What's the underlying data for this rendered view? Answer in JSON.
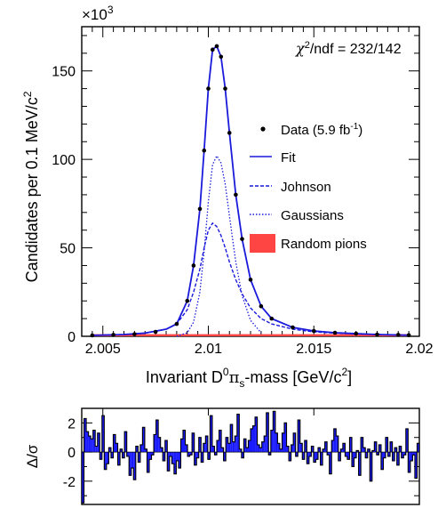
{
  "chart_data": [
    {
      "type": "line",
      "multiplier_label": "×10",
      "multiplier_exp": "3",
      "chi2_label": "χ",
      "chi2_rest": "/ndf = 232/142",
      "ylabel": "Candidates per 0.1 MeV/c",
      "ylabel_sup": "2",
      "xlabel_parts": [
        "Invariant D",
        "0",
        "π",
        "s",
        "-mass [GeV/c",
        "2",
        "]"
      ],
      "xlim": [
        2.004,
        2.02
      ],
      "ylim": [
        0,
        175
      ],
      "x_ticks": [
        2.005,
        2.01,
        2.015,
        2.02
      ],
      "x_tick_labels": [
        "2.005",
        "2.01",
        "2.015",
        "2.02"
      ],
      "y_ticks": [
        0,
        50,
        100,
        150
      ],
      "y_tick_labels": [
        "0",
        "50",
        "100",
        "150"
      ],
      "legend_position": "right",
      "legend": [
        {
          "label": "Data (5.9 fb",
          "sup": "-1",
          "tail": ")",
          "style": "marker"
        },
        {
          "label": "Fit",
          "style": "solid",
          "color": "#1a1adb"
        },
        {
          "label": "Johnson",
          "style": "dashed",
          "color": "#1a1adb"
        },
        {
          "label": "Gaussians",
          "style": "dotted",
          "color": "#1a1adb"
        },
        {
          "label": "Random pions",
          "style": "box",
          "color": "#ff4444"
        }
      ],
      "series": [
        {
          "name": "Data (5.9 fb-1)",
          "x": [
            2.0045,
            2.0055,
            2.0065,
            2.0075,
            2.0085,
            2.009,
            2.0093,
            2.0096,
            2.0098,
            2.01,
            2.0102,
            2.0104,
            2.0106,
            2.0108,
            2.011,
            2.0113,
            2.0116,
            2.012,
            2.0125,
            2.013,
            2.014,
            2.015,
            2.016,
            2.017,
            2.018,
            2.019,
            2.0195
          ],
          "values": [
            0.5,
            0.8,
            1.2,
            2.5,
            7,
            20,
            40,
            72,
            105,
            140,
            162,
            164,
            158,
            140,
            115,
            80,
            55,
            32,
            17,
            10,
            5,
            3,
            2,
            1.5,
            1,
            0.8,
            0.6
          ]
        },
        {
          "name": "Fit",
          "x": [
            2.0045,
            2.006,
            2.007,
            2.008,
            2.0085,
            2.009,
            2.0093,
            2.0096,
            2.0098,
            2.01,
            2.0102,
            2.0104,
            2.0106,
            2.0108,
            2.011,
            2.0113,
            2.0116,
            2.012,
            2.0125,
            2.013,
            2.014,
            2.015,
            2.016,
            2.018,
            2.0195
          ],
          "values": [
            0.5,
            1,
            1.8,
            4,
            7,
            20,
            40,
            72,
            105,
            140,
            162,
            164,
            158,
            140,
            115,
            80,
            55,
            32,
            17,
            10,
            5,
            3,
            2,
            1,
            0.6
          ]
        },
        {
          "name": "Johnson",
          "x": [
            2.0045,
            2.006,
            2.007,
            2.008,
            2.0085,
            2.009,
            2.0093,
            2.0096,
            2.0098,
            2.01,
            2.0102,
            2.0104,
            2.0106,
            2.0108,
            2.011,
            2.0113,
            2.0116,
            2.012,
            2.0125,
            2.013,
            2.014,
            2.015,
            2.016,
            2.018,
            2.0195
          ],
          "values": [
            0.5,
            1,
            1.8,
            4,
            7,
            15,
            25,
            38,
            50,
            60,
            64,
            62,
            57,
            50,
            42,
            32,
            24,
            16,
            10,
            7,
            4,
            2.5,
            1.8,
            1,
            0.6
          ]
        },
        {
          "name": "Gaussians",
          "x": [
            2.0085,
            2.009,
            2.0093,
            2.0096,
            2.0098,
            2.01,
            2.0102,
            2.0104,
            2.0106,
            2.0108,
            2.011,
            2.0113,
            2.0116,
            2.012,
            2.0125
          ],
          "values": [
            0,
            2,
            8,
            25,
            48,
            76,
            97,
            102,
            98,
            86,
            68,
            42,
            23,
            9,
            2
          ]
        },
        {
          "name": "Random pions",
          "x": [
            2.0045,
            2.0195
          ],
          "values": [
            1.2,
            1.2
          ]
        }
      ]
    },
    {
      "type": "bar",
      "ylabel": "Δ/σ",
      "xlim": [
        2.004,
        2.02
      ],
      "ylim": [
        -3.6,
        3
      ],
      "y_ticks": [
        -2,
        0,
        2
      ],
      "y_tick_labels": [
        "-2",
        "0",
        "2"
      ],
      "bar_color": "#1a1aff",
      "series": [
        {
          "name": "Δ/σ",
          "values": [
            -3.5,
            2.3,
            1.4,
            1.1,
            0.9,
            1.5,
            0.4,
            1.3,
            -0.5,
            2.5,
            -1.2,
            -0.8,
            0.3,
            -0.4,
            1.2,
            0.6,
            -0.9,
            0.2,
            -0.4,
            1.4,
            -0.3,
            -1.6,
            -1.1,
            -1.9,
            0.4,
            -0.7,
            0.5,
            1.7,
            0.2,
            -1.4,
            -0.5,
            -0.2,
            1.2,
            2.2,
            1.0,
            0.3,
            -0.6,
            0.8,
            -1.3,
            -0.3,
            -0.8,
            -1.5,
            -0.6,
            -1.1,
            0.9,
            1.5,
            0.5,
            -0.3,
            -0.2,
            1.3,
            -0.9,
            -0.4,
            1.0,
            -0.7,
            0.6,
            1.1,
            -0.5,
            2.5,
            0.4,
            -0.2,
            0.8,
            1.5,
            0.3,
            -0.6,
            1.0,
            0.6,
            1.9,
            0.7,
            1.1,
            2.6,
            0.2,
            -0.4,
            0.9,
            0.3,
            0.8,
            1.6,
            1.8,
            2.4,
            0.5,
            0.3,
            0.7,
            1.1,
            2.7,
            -0.2,
            1.5,
            2.8,
            1.3,
            0.6,
            0.2,
            1.3,
            2.0,
            0.4,
            -0.6,
            0.5,
            1.3,
            -0.3,
            2.2,
            0.6,
            -0.5,
            0.8,
            -0.8,
            -0.3,
            0.4,
            -0.7,
            -0.5,
            0.3,
            -0.9,
            0.2,
            0.7,
            -0.2,
            -1.5,
            0.8,
            1.6,
            1.1,
            -0.6,
            0.2,
            0.6,
            -0.3,
            -0.5,
            1.0,
            -1.0,
            -0.4,
            0.1,
            -1.6,
            1.0,
            0.3,
            -0.4,
            0.2,
            -2.0,
            0.1,
            0.7,
            -0.2,
            0.5,
            -1.2,
            -0.4,
            1.0,
            -0.3,
            0.7,
            -0.6,
            0.3,
            -0.9,
            0.4,
            -0.4,
            -0.2,
            1.6,
            -1.4,
            -0.6,
            -0.2,
            -1.8,
            0.6
          ]
        }
      ]
    }
  ]
}
